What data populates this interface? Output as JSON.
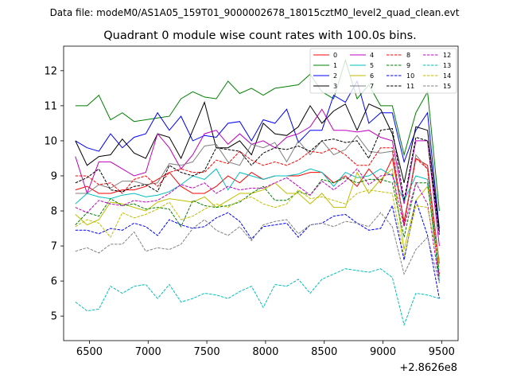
{
  "chart_data": {
    "type": "line",
    "suptitle": "Data file: modeM0/AS1A05_159T01_9000002678_18015cztM0_level2_quad_clean.evt",
    "title": "Quadrant 0 module wise count rates with 100.0s bins.",
    "xlabel": "",
    "ylabel": "",
    "x_offset_label": "+2.8626e8",
    "xlim": [
      6280,
      9640
    ],
    "ylim": [
      4.3,
      12.7
    ],
    "xticks": [
      6500,
      7000,
      7500,
      8000,
      8500,
      9000,
      9500
    ],
    "yticks": [
      5,
      6,
      7,
      8,
      9,
      10,
      11,
      12
    ],
    "x": [
      6380,
      6480,
      6580,
      6680,
      6780,
      6880,
      6980,
      7080,
      7180,
      7280,
      7380,
      7480,
      7580,
      7680,
      7780,
      7880,
      7980,
      8080,
      8180,
      8280,
      8380,
      8480,
      8580,
      8680,
      8780,
      8880,
      8980,
      9080,
      9180,
      9280,
      9380,
      9480
    ],
    "series": [
      {
        "name": "0",
        "color": "#ff0000",
        "dash": false,
        "values": [
          8.6,
          8.7,
          8.5,
          8.5,
          8.6,
          8.6,
          8.7,
          8.9,
          9.1,
          8.7,
          8.5,
          8.5,
          8.7,
          9.0,
          8.8,
          9.1,
          8.9,
          9.0,
          9.0,
          9.0,
          9.1,
          9.1,
          8.8,
          9.0,
          8.7,
          9.2,
          8.8,
          9.5,
          7.7,
          9.5,
          9.3,
          6.5
        ]
      },
      {
        "name": "1",
        "color": "#008000",
        "dash": false,
        "values": [
          11.0,
          11.0,
          11.3,
          10.6,
          10.8,
          10.55,
          10.6,
          10.65,
          10.7,
          11.2,
          11.4,
          11.25,
          11.2,
          11.7,
          11.35,
          11.5,
          11.3,
          11.5,
          11.55,
          11.6,
          11.9,
          11.4,
          11.2,
          12.3,
          11.2,
          11.6,
          11.0,
          11.0,
          9.6,
          10.8,
          11.4,
          8.0
        ]
      },
      {
        "name": "2",
        "color": "#0000ff",
        "dash": false,
        "values": [
          10.0,
          9.8,
          9.7,
          10.2,
          9.8,
          10.1,
          10.2,
          10.8,
          10.3,
          10.7,
          10.0,
          10.15,
          10.1,
          10.5,
          10.55,
          10.0,
          10.6,
          10.5,
          10.9,
          9.95,
          10.3,
          10.3,
          11.3,
          11.1,
          11.7,
          10.5,
          10.8,
          10.8,
          9.4,
          10.3,
          10.8,
          7.5
        ]
      },
      {
        "name": "3",
        "color": "#000000",
        "dash": false,
        "values": [
          10.0,
          9.3,
          9.55,
          9.6,
          10.05,
          9.65,
          9.5,
          10.2,
          10.1,
          9.5,
          10.3,
          11.1,
          9.8,
          9.8,
          10.0,
          9.6,
          10.5,
          10.2,
          10.15,
          10.4,
          11.0,
          10.5,
          10.85,
          11.05,
          10.3,
          11.05,
          10.9,
          10.2,
          8.8,
          10.4,
          10.3,
          7.4
        ]
      },
      {
        "name": "4",
        "color": "#c000c0",
        "dash": false,
        "values": [
          9.55,
          8.5,
          9.4,
          9.4,
          9.2,
          9.0,
          9.1,
          10.2,
          9.8,
          9.2,
          9.6,
          10.2,
          10.3,
          9.9,
          10.2,
          9.9,
          10.0,
          9.8,
          10.1,
          10.2,
          10.4,
          10.9,
          10.3,
          10.3,
          10.25,
          10.3,
          10.1,
          10.0,
          8.2,
          10.0,
          10.0,
          7.0
        ]
      },
      {
        "name": "5",
        "color": "#00bfbf",
        "dash": false,
        "values": [
          8.2,
          8.5,
          8.4,
          8.35,
          8.45,
          8.5,
          8.4,
          8.45,
          8.55,
          8.75,
          9.0,
          8.9,
          9.2,
          8.6,
          9.1,
          9.0,
          8.9,
          9.0,
          9.0,
          9.05,
          9.2,
          9.1,
          8.7,
          9.1,
          8.95,
          9.0,
          9.2,
          9.0,
          8.3,
          9.0,
          8.9,
          6.0
        ]
      },
      {
        "name": "6",
        "color": "#bfbf00",
        "dash": false,
        "values": [
          7.9,
          7.6,
          7.75,
          8.25,
          8.2,
          8.1,
          8.0,
          8.25,
          8.35,
          8.3,
          8.25,
          8.4,
          8.1,
          8.3,
          8.5,
          8.5,
          8.6,
          8.8,
          8.5,
          8.5,
          8.2,
          8.5,
          8.1,
          8.1,
          9.1,
          8.5,
          8.9,
          9.2,
          6.9,
          8.3,
          8.7,
          6.6
        ]
      },
      {
        "name": "7",
        "color": "#808080",
        "dash": false,
        "values": [
          8.5,
          8.5,
          8.75,
          8.65,
          8.85,
          8.85,
          8.75,
          8.8,
          9.35,
          9.3,
          9.4,
          9.85,
          9.9,
          9.4,
          9.3,
          9.9,
          9.8,
          9.95,
          9.4,
          10.0,
          9.6,
          10.0,
          9.6,
          9.75,
          10.15,
          9.7,
          9.65,
          9.7,
          7.6,
          9.6,
          9.2,
          6.5
        ]
      },
      {
        "name": "8",
        "color": "#ff0000",
        "dash": true,
        "values": [
          9.0,
          9.0,
          8.75,
          8.8,
          8.5,
          8.9,
          9.0,
          8.7,
          9.1,
          9.2,
          9.1,
          9.1,
          9.45,
          9.35,
          9.7,
          9.45,
          9.3,
          9.4,
          9.3,
          9.45,
          9.7,
          9.65,
          9.8,
          9.6,
          9.3,
          9.3,
          9.8,
          9.8,
          7.6,
          9.5,
          9.2,
          6.2
        ]
      },
      {
        "name": "9",
        "color": "#008000",
        "dash": true,
        "values": [
          7.6,
          7.95,
          7.85,
          8.35,
          8.15,
          8.2,
          8.05,
          8.1,
          8.05,
          7.55,
          8.3,
          8.15,
          8.1,
          8.15,
          8.25,
          8.5,
          8.7,
          8.3,
          8.3,
          8.55,
          8.45,
          8.9,
          8.8,
          8.95,
          8.8,
          8.9,
          8.9,
          8.8,
          7.25,
          8.8,
          8.8,
          6.1
        ]
      },
      {
        "name": "10",
        "color": "#0000ff",
        "dash": true,
        "values": [
          7.45,
          7.45,
          7.35,
          7.5,
          7.45,
          7.65,
          7.55,
          7.3,
          7.75,
          7.6,
          7.5,
          7.55,
          7.8,
          7.95,
          7.7,
          7.2,
          7.55,
          7.6,
          7.65,
          7.25,
          7.6,
          7.65,
          7.85,
          7.9,
          7.65,
          7.45,
          7.5,
          8.15,
          6.6,
          8.3,
          7.3,
          5.5
        ]
      },
      {
        "name": "11",
        "color": "#000000",
        "dash": true,
        "values": [
          8.8,
          8.95,
          9.2,
          8.6,
          8.55,
          8.7,
          8.75,
          8.55,
          9.3,
          9.1,
          9.0,
          9.15,
          9.8,
          9.75,
          9.7,
          9.3,
          9.65,
          9.8,
          9.75,
          9.85,
          9.7,
          10.0,
          10.05,
          9.95,
          10.0,
          9.5,
          10.3,
          10.35,
          8.3,
          10.1,
          10.0,
          7.3
        ]
      },
      {
        "name": "12",
        "color": "#c000c0",
        "dash": true,
        "values": [
          8.1,
          7.95,
          8.3,
          8.2,
          8.15,
          8.3,
          8.25,
          8.3,
          8.5,
          8.75,
          8.65,
          8.8,
          8.5,
          8.7,
          8.6,
          8.65,
          8.65,
          8.8,
          8.95,
          8.7,
          8.45,
          8.85,
          8.6,
          8.85,
          9.2,
          8.75,
          9.0,
          9.05,
          7.55,
          8.8,
          8.2,
          5.95
        ]
      },
      {
        "name": "13",
        "color": "#00bfbf",
        "dash": true,
        "values": [
          5.4,
          5.15,
          5.2,
          5.85,
          5.65,
          5.85,
          5.9,
          5.5,
          5.9,
          5.4,
          5.5,
          5.65,
          5.6,
          5.5,
          5.7,
          5.85,
          5.25,
          5.9,
          5.85,
          6.05,
          5.65,
          6.05,
          6.2,
          6.35,
          6.3,
          6.25,
          6.35,
          6.1,
          4.75,
          5.65,
          5.6,
          5.5
        ]
      },
      {
        "name": "14",
        "color": "#bfbf00",
        "dash": true,
        "values": [
          7.55,
          7.75,
          7.65,
          7.25,
          7.95,
          7.8,
          7.9,
          8.05,
          8.25,
          7.75,
          7.85,
          8.05,
          8.2,
          8.1,
          8.3,
          8.4,
          8.2,
          8.1,
          8.2,
          8.6,
          8.35,
          8.4,
          8.3,
          8.2,
          8.5,
          8.6,
          8.55,
          8.5,
          6.7,
          8.15,
          8.1,
          6.4
        ]
      },
      {
        "name": "15",
        "color": "#808080",
        "dash": true,
        "values": [
          6.85,
          6.95,
          6.8,
          7.05,
          7.05,
          7.4,
          6.85,
          6.95,
          6.9,
          7.05,
          7.5,
          7.75,
          7.45,
          7.3,
          7.55,
          7.15,
          7.6,
          7.7,
          7.75,
          7.35,
          7.6,
          7.65,
          7.55,
          7.7,
          7.65,
          7.55,
          7.95,
          7.55,
          6.2,
          6.9,
          7.25,
          5.95
        ]
      }
    ]
  }
}
